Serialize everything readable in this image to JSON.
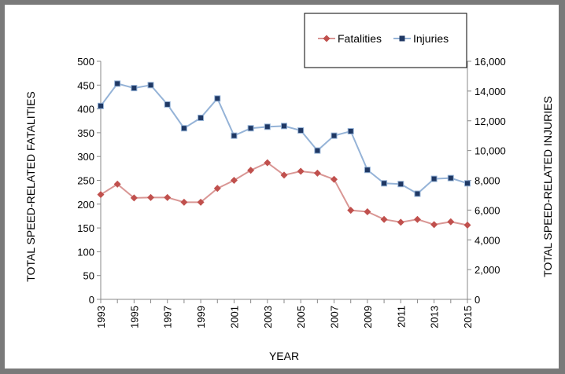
{
  "chart_data": {
    "type": "line",
    "x": [
      "1993",
      "1994",
      "1995",
      "1996",
      "1997",
      "1998",
      "1999",
      "2000",
      "2001",
      "2002",
      "2003",
      "2004",
      "2005",
      "2006",
      "2007",
      "2008",
      "2009",
      "2010",
      "2011",
      "2012",
      "2013",
      "2014",
      "2015"
    ],
    "x_tick_labels": [
      "1993",
      "1995",
      "1997",
      "1999",
      "2001",
      "2003",
      "2005",
      "2007",
      "2009",
      "2011",
      "2013",
      "2015"
    ],
    "xlabel": "YEAR",
    "y_left": {
      "label": "TOTAL SPEED-RELATED FATALITIES",
      "lim": [
        0,
        500
      ],
      "ticks": [
        "0",
        "50",
        "100",
        "150",
        "200",
        "250",
        "300",
        "350",
        "400",
        "450",
        "500"
      ]
    },
    "y_right": {
      "label": "TOTAL SPEED-RELATED INJURIES",
      "lim": [
        0,
        16000
      ],
      "ticks": [
        "0",
        "2,000",
        "4,000",
        "6,000",
        "8,000",
        "10,000",
        "12,000",
        "14,000",
        "16,000"
      ]
    },
    "series": [
      {
        "name": "Fatalities",
        "axis": "left",
        "color": "#c0504d",
        "line_color": "#d99694",
        "marker": "diamond",
        "values": [
          220,
          242,
          213,
          214,
          214,
          204,
          204,
          233,
          250,
          271,
          287,
          261,
          269,
          265,
          252,
          187,
          184,
          168,
          162,
          168,
          157,
          163,
          156
        ]
      },
      {
        "name": "Injuries",
        "axis": "right",
        "color": "#1f3864",
        "line_color": "#95b3d7",
        "marker": "square",
        "values": [
          13000,
          14500,
          14200,
          14400,
          13100,
          11500,
          12200,
          13500,
          11000,
          11500,
          11600,
          11650,
          11350,
          10000,
          11000,
          11300,
          8700,
          7800,
          7750,
          7100,
          8100,
          8150,
          7800
        ]
      }
    ],
    "legend": "top-right",
    "grid": false
  }
}
